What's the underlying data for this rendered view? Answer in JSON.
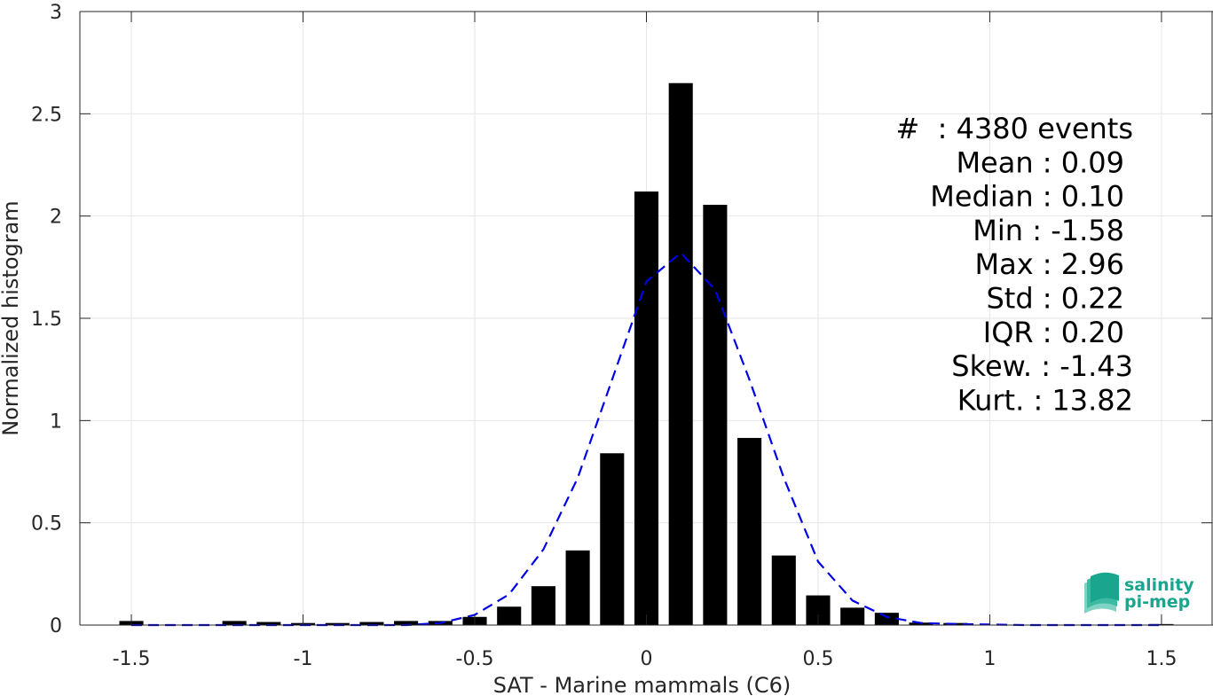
{
  "chart_data": {
    "type": "bar",
    "xlabel": "SAT - Marine mammals (C6)",
    "ylabel": "Normalized histogram",
    "xlim": [
      -1.65,
      1.65
    ],
    "ylim": [
      0,
      3
    ],
    "xticks": [
      -1.5,
      -1,
      -0.5,
      0,
      0.5,
      1,
      1.5
    ],
    "xtick_labels": [
      "-1.5",
      "-1",
      "-0.5",
      "0",
      "0.5",
      "1",
      "1.5"
    ],
    "yticks": [
      0,
      0.5,
      1,
      1.5,
      2,
      2.5,
      3
    ],
    "ytick_labels": [
      "0",
      "0.5",
      "1",
      "1.5",
      "2",
      "2.5",
      "3"
    ],
    "grid": true,
    "bar_width": 0.07,
    "bars": {
      "x": [
        -1.5,
        -1.2,
        -1.1,
        -1.0,
        -0.9,
        -0.8,
        -0.7,
        -0.6,
        -0.5,
        -0.4,
        -0.3,
        -0.2,
        -0.1,
        0.0,
        0.1,
        0.2,
        0.3,
        0.4,
        0.5,
        0.6,
        0.7,
        0.8,
        0.9,
        1.5
      ],
      "values": [
        0.02,
        0.02,
        0.015,
        0.01,
        0.01,
        0.015,
        0.02,
        0.02,
        0.04,
        0.09,
        0.19,
        0.365,
        0.84,
        2.12,
        2.65,
        2.055,
        0.915,
        0.34,
        0.145,
        0.085,
        0.06,
        0.012,
        0.01,
        0.005
      ],
      "color": "#000000"
    },
    "fit_curve": {
      "style": "dashed",
      "color": "#0000e6",
      "x": [
        -1.5,
        -1.3,
        -1.1,
        -0.9,
        -0.7,
        -0.6,
        -0.5,
        -0.4,
        -0.3,
        -0.2,
        -0.1,
        0.0,
        0.1,
        0.2,
        0.3,
        0.4,
        0.5,
        0.6,
        0.7,
        0.8,
        0.9,
        1.1,
        1.3,
        1.5
      ],
      "y": [
        0.0,
        0.0,
        0.0,
        0.0,
        0.0,
        0.01,
        0.05,
        0.15,
        0.37,
        0.72,
        1.2,
        1.68,
        1.82,
        1.64,
        1.2,
        0.72,
        0.31,
        0.12,
        0.04,
        0.01,
        0.005,
        0.0,
        0.0,
        0.0
      ]
    },
    "stats": [
      "#  : 4380 events",
      "Mean : 0.09",
      "Median : 0.10",
      "Min : -1.58",
      "Max : 2.96",
      "Std : 0.22",
      "IQR : 0.20",
      "Skew. : -1.43",
      "Kurt. : 13.82"
    ]
  },
  "logo": {
    "line1": "salinity",
    "line2": "pi-mep",
    "color": "#1aa58f"
  }
}
